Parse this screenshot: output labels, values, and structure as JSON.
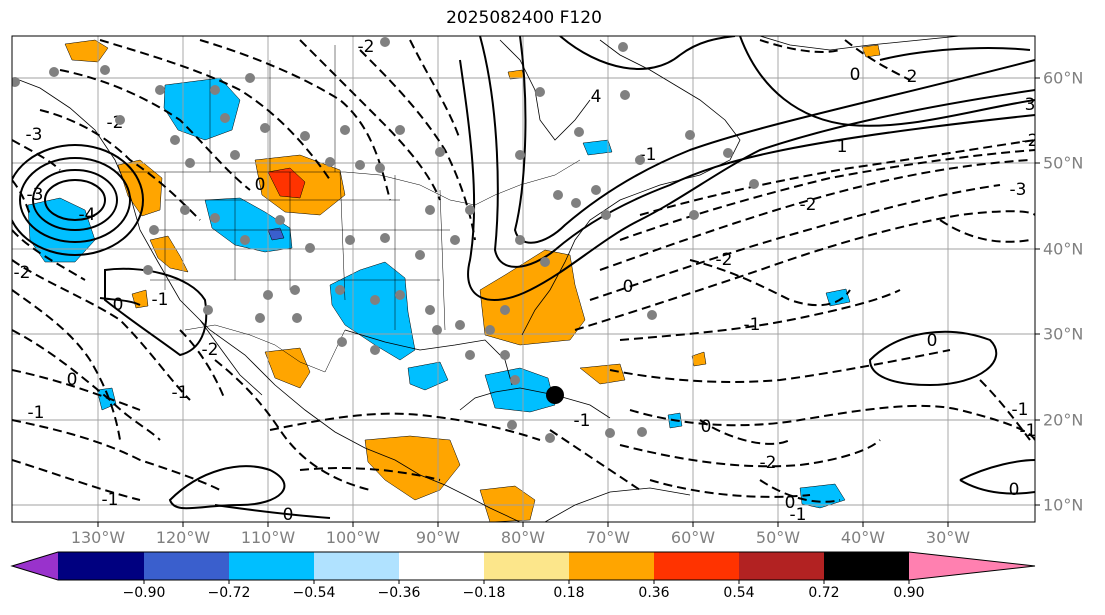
{
  "title": "2025082400 F120",
  "lon_labels": [
    "130°W",
    "120°W",
    "110°W",
    "100°W",
    "90°W",
    "80°W",
    "70°W",
    "60°W",
    "50°W",
    "40°W",
    "30°W"
  ],
  "lat_labels": [
    "60°N",
    "50°N",
    "40°N",
    "30°N",
    "20°N",
    "10°N"
  ],
  "colorbar": {
    "ticks": [
      "−0.90",
      "−0.72",
      "−0.54",
      "−0.36",
      "−0.18",
      "0.18",
      "0.36",
      "0.54",
      "0.72",
      "0.90"
    ],
    "colors": {
      "under": "#9932cc",
      "bins": [
        "#000080",
        "#3a5fcd",
        "#00bfff",
        "#b0e2ff",
        "#ffffff",
        "#fce68b",
        "#ffa500",
        "#ff3300",
        "#b22222"
      ],
      "over": "#ff80b0"
    }
  },
  "contour_labels": [
    "-2",
    "-3",
    "-1",
    "0",
    "4",
    "-4",
    "2",
    "3",
    "1"
  ],
  "map_features": {
    "stations": "gray dots",
    "storm_marker": "black dot"
  }
}
